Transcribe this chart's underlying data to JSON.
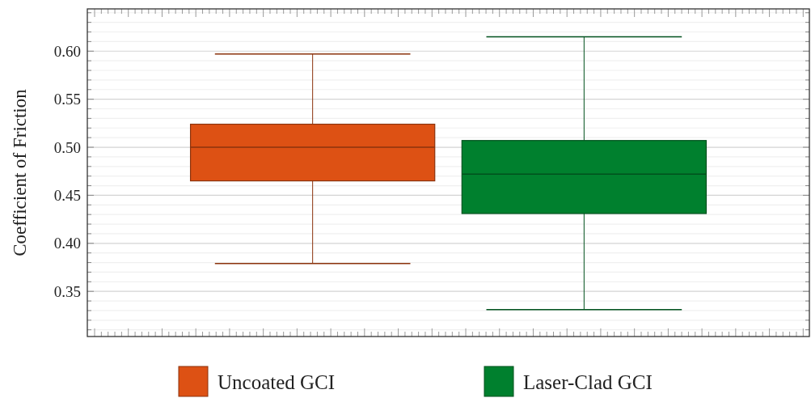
{
  "chart_data": {
    "type": "box",
    "ylabel": "Coefficient of Friction",
    "categories": [
      null,
      null
    ],
    "series": [
      {
        "name": "Uncoated GCI",
        "color": "#dd5114",
        "boxes": [
          {
            "low": 0.379,
            "q1": 0.465,
            "median": 0.5,
            "q3": 0.524,
            "high": 0.597
          },
          null
        ]
      },
      {
        "name": "Laser-Clad GCI",
        "color": "#00802e",
        "boxes": [
          null,
          {
            "low": 0.331,
            "q1": 0.431,
            "median": 0.472,
            "q3": 0.507,
            "high": 0.615
          }
        ]
      }
    ],
    "ylim": [
      0.303,
      0.644
    ],
    "yticks": [
      {
        "value": 0.31,
        "label": null
      },
      {
        "value": 0.32,
        "label": null
      },
      {
        "value": 0.33,
        "label": null
      },
      {
        "value": 0.34,
        "label": null
      },
      {
        "value": 0.35,
        "label": "0.35"
      },
      {
        "value": 0.36,
        "label": null
      },
      {
        "value": 0.37,
        "label": null
      },
      {
        "value": 0.38,
        "label": null
      },
      {
        "value": 0.39,
        "label": null
      },
      {
        "value": 0.4,
        "label": "0.40"
      },
      {
        "value": 0.41,
        "label": null
      },
      {
        "value": 0.42,
        "label": null
      },
      {
        "value": 0.43,
        "label": null
      },
      {
        "value": 0.44,
        "label": null
      },
      {
        "value": 0.45,
        "label": "0.45"
      },
      {
        "value": 0.46,
        "label": null
      },
      {
        "value": 0.47,
        "label": null
      },
      {
        "value": 0.48,
        "label": null
      },
      {
        "value": 0.49,
        "label": null
      },
      {
        "value": 0.5,
        "label": "0.50"
      },
      {
        "value": 0.51,
        "label": null
      },
      {
        "value": 0.52,
        "label": null
      },
      {
        "value": 0.53,
        "label": null
      },
      {
        "value": 0.54,
        "label": null
      },
      {
        "value": 0.55,
        "label": "0.55"
      },
      {
        "value": 0.56,
        "label": null
      },
      {
        "value": 0.57,
        "label": null
      },
      {
        "value": 0.58,
        "label": null
      },
      {
        "value": 0.59,
        "label": null
      },
      {
        "value": 0.6,
        "label": "0.60"
      },
      {
        "value": 0.61,
        "label": null
      },
      {
        "value": 0.62,
        "label": null
      },
      {
        "value": 0.63,
        "label": null
      },
      {
        "value": 0.64,
        "label": null
      }
    ],
    "grid": true,
    "legend": "bottom"
  }
}
